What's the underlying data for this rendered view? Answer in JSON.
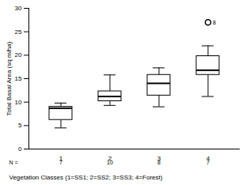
{
  "chart_data": {
    "type": "box",
    "categories": [
      "1",
      "2",
      "3",
      "4"
    ],
    "min": [
      4.5,
      9.3,
      9.0,
      11.2
    ],
    "q1": [
      6.2,
      10.2,
      11.4,
      15.8
    ],
    "median": [
      8.7,
      11.2,
      14.0,
      16.8
    ],
    "q3": [
      9.0,
      12.3,
      15.8,
      19.8
    ],
    "max": [
      9.8,
      15.8,
      17.3,
      22.0
    ],
    "outliers": [
      [],
      [],
      [],
      [
        {
          "value": 27.0,
          "label": "8"
        }
      ]
    ],
    "n_label": "N =",
    "n": [
      7,
      10,
      8,
      7
    ],
    "x_label": "Vegetation Classes (1=SS1; 2=SS2; 3=SS3; 4=Forest)",
    "y_label": "Total Basal Area (sq m/ha)",
    "ylim": [
      0,
      30
    ],
    "yticks": [
      0,
      5,
      10,
      15,
      20,
      25,
      30
    ],
    "color": "#ffffff",
    "grid": false
  }
}
